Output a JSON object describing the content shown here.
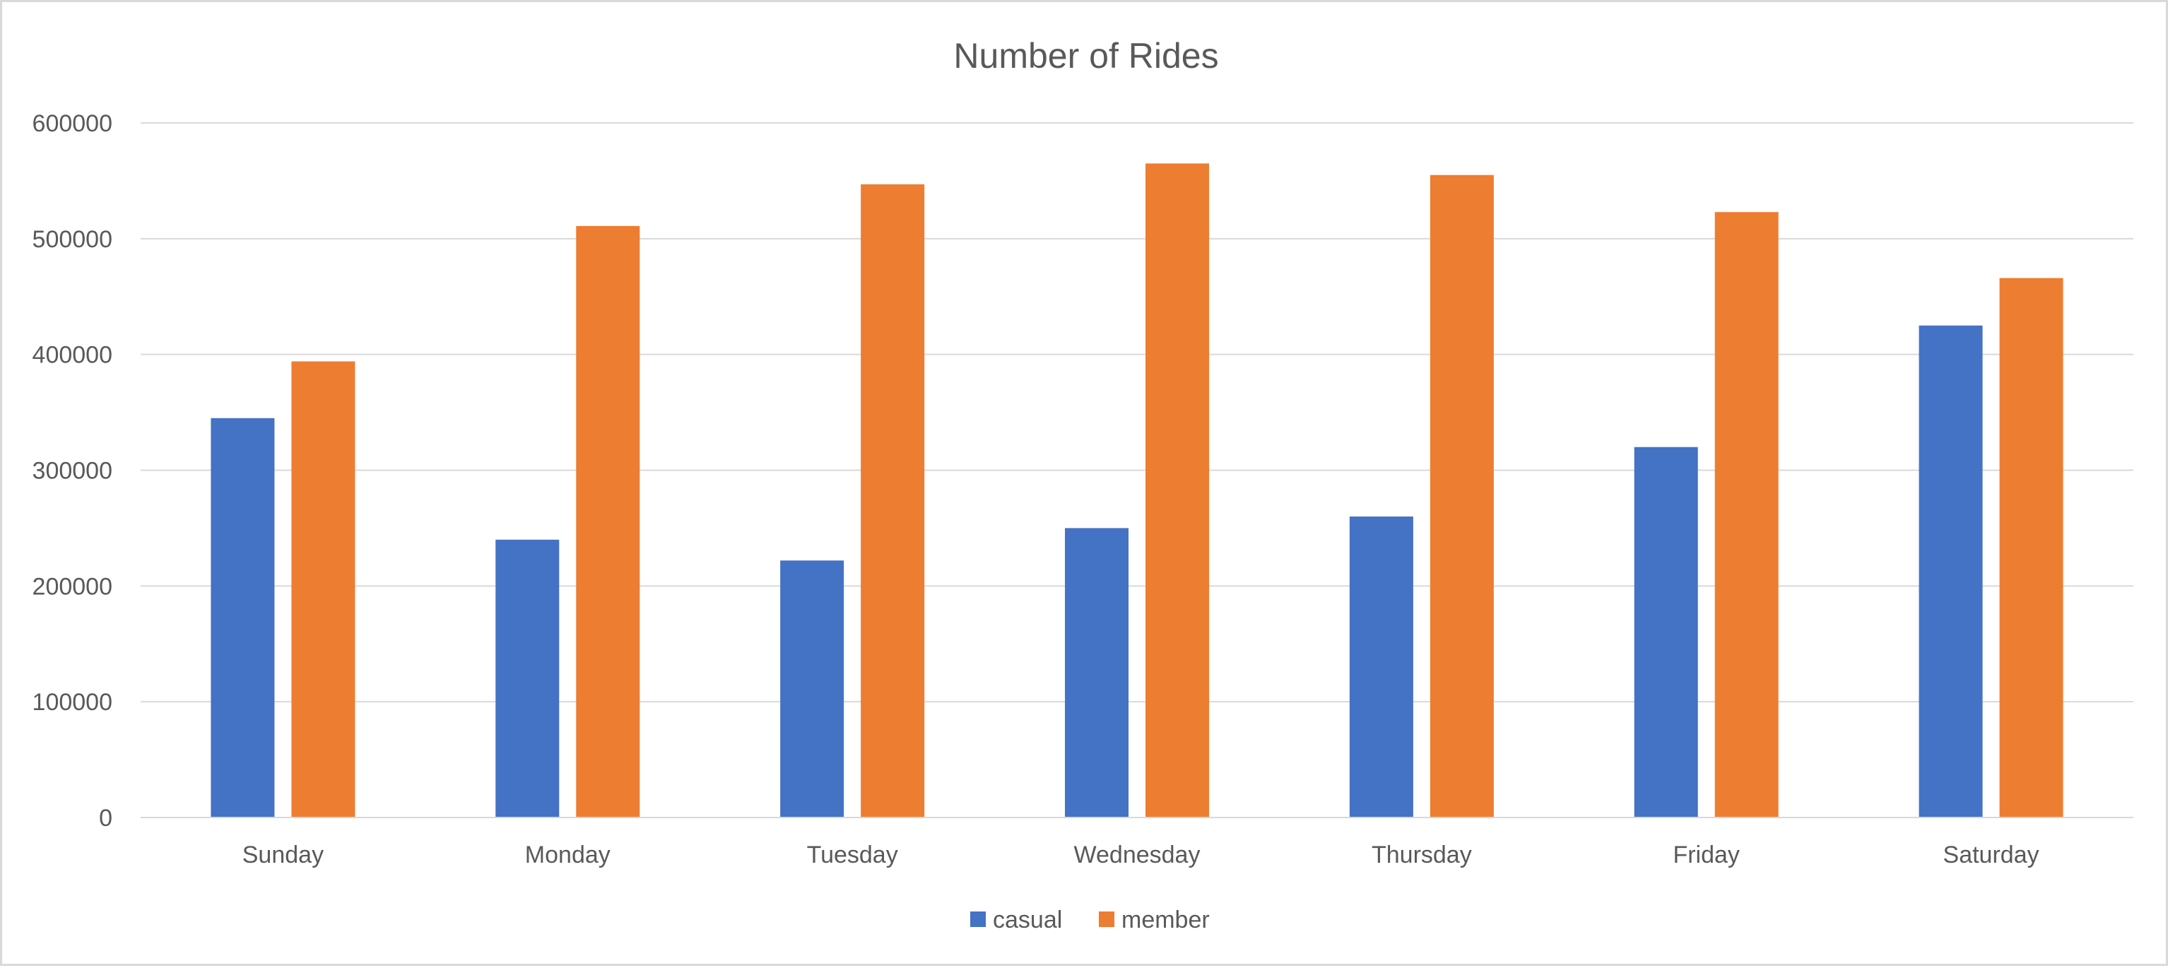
{
  "chart_data": {
    "type": "bar",
    "title": "Number of Rides",
    "xlabel": "",
    "ylabel": "",
    "categories": [
      "Sunday",
      "Monday",
      "Tuesday",
      "Wednesday",
      "Thursday",
      "Friday",
      "Saturday"
    ],
    "series": [
      {
        "name": "casual",
        "color": "#4472c4",
        "values": [
          345000,
          240000,
          222000,
          250000,
          260000,
          320000,
          425000
        ]
      },
      {
        "name": "member",
        "color": "#ed7d31",
        "values": [
          394000,
          511000,
          547000,
          565000,
          555000,
          523000,
          466000
        ]
      }
    ],
    "ylim": [
      0,
      600000
    ],
    "yticks": [
      "0",
      "100000",
      "200000",
      "300000",
      "400000",
      "500000",
      "600000"
    ],
    "grid": true,
    "legend_position": "bottom"
  }
}
